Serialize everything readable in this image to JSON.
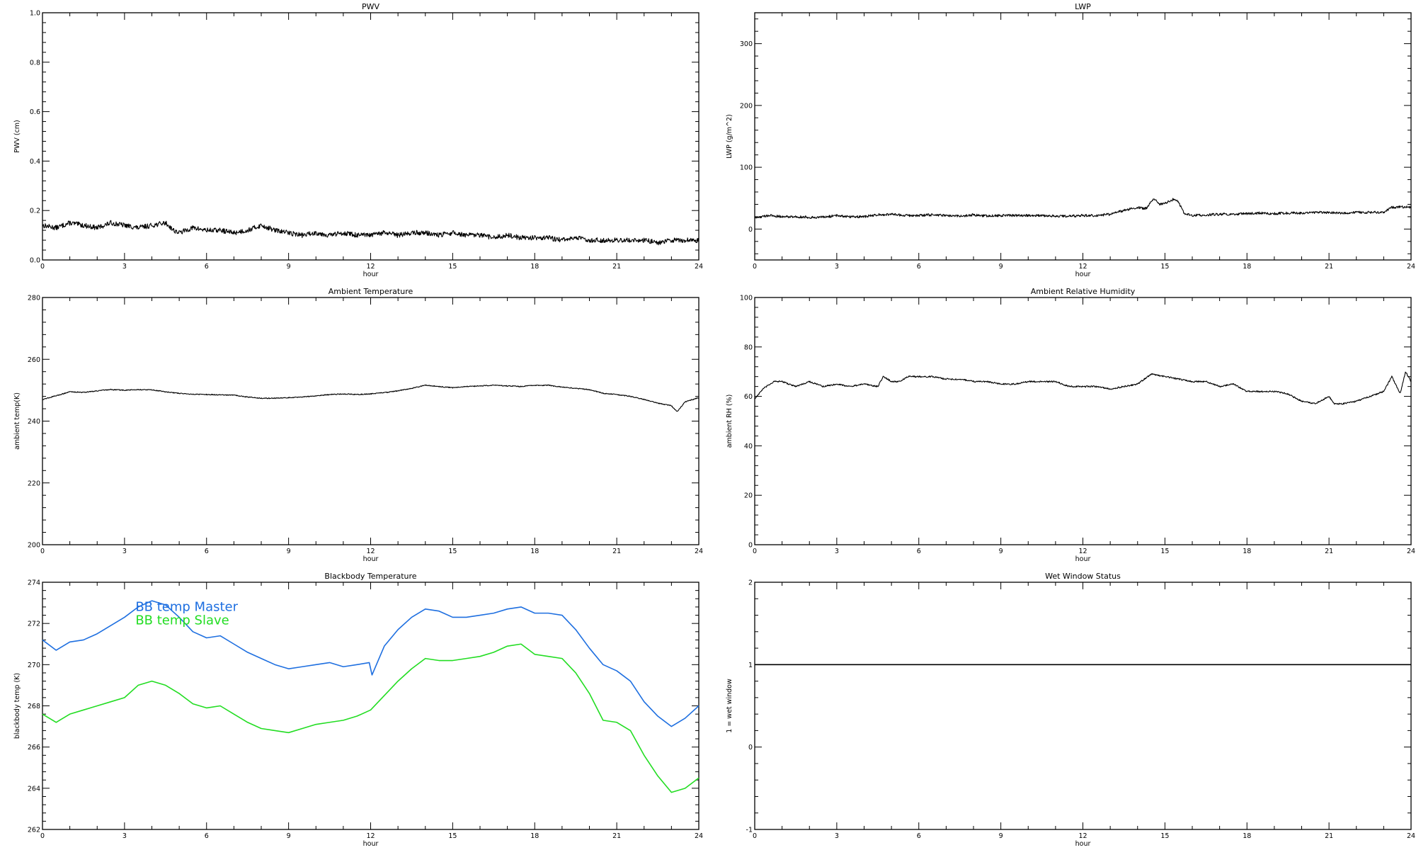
{
  "chart_data": [
    {
      "id": "pwv",
      "type": "line",
      "title": "PWV",
      "xlabel": "hour",
      "ylabel": "PWV (cm)",
      "xlim": [
        0,
        24
      ],
      "ylim": [
        0,
        1.0
      ],
      "xticks": [
        0,
        3,
        6,
        9,
        12,
        15,
        18,
        21,
        24
      ],
      "yticks": [
        0.0,
        0.2,
        0.4,
        0.6,
        0.8,
        1.0
      ],
      "yticklabels": [
        "0.0",
        "0.2",
        "0.4",
        "0.6",
        "0.8",
        "1.0"
      ],
      "noise": 0.01,
      "series": [
        {
          "color": "#000000",
          "x": [
            0,
            0.5,
            1,
            1.5,
            2,
            2.5,
            3,
            3.5,
            4,
            4.5,
            4.8,
            5,
            5.5,
            6,
            6.5,
            7,
            7.5,
            8,
            8.5,
            9,
            9.5,
            10,
            10.5,
            11,
            11.5,
            12,
            12.5,
            13,
            13.5,
            14,
            14.5,
            15,
            15.5,
            16,
            16.5,
            17,
            17.5,
            18,
            18.5,
            19,
            19.5,
            20,
            20.5,
            21,
            21.5,
            22,
            22.5,
            23,
            23.5,
            24
          ],
          "y": [
            0.14,
            0.13,
            0.15,
            0.14,
            0.13,
            0.15,
            0.14,
            0.13,
            0.14,
            0.15,
            0.12,
            0.11,
            0.13,
            0.12,
            0.12,
            0.11,
            0.12,
            0.14,
            0.12,
            0.11,
            0.1,
            0.11,
            0.1,
            0.11,
            0.1,
            0.1,
            0.11,
            0.1,
            0.11,
            0.11,
            0.1,
            0.11,
            0.1,
            0.1,
            0.09,
            0.1,
            0.09,
            0.09,
            0.09,
            0.08,
            0.09,
            0.08,
            0.08,
            0.08,
            0.08,
            0.08,
            0.07,
            0.08,
            0.08,
            0.08
          ]
        }
      ]
    },
    {
      "id": "lwp",
      "type": "line",
      "title": "LWP",
      "xlabel": "hour",
      "ylabel": "LWP (g/m^2)",
      "xlim": [
        0,
        24
      ],
      "ylim": [
        -50,
        350
      ],
      "xticks": [
        0,
        3,
        6,
        9,
        12,
        15,
        18,
        21,
        24
      ],
      "yticks": [
        0,
        100,
        200,
        300
      ],
      "yticklabels": [
        "0",
        "100",
        "200",
        "300"
      ],
      "noise": 2,
      "series": [
        {
          "color": "#000000",
          "x": [
            0,
            0.5,
            1,
            1.5,
            2,
            2.5,
            3,
            3.5,
            4,
            4.5,
            5,
            5.5,
            6,
            6.5,
            7,
            7.5,
            8,
            8.5,
            9,
            9.5,
            10,
            10.5,
            11,
            11.5,
            12,
            12.5,
            13,
            13.5,
            14,
            14.3,
            14.6,
            14.8,
            15,
            15.3,
            15.5,
            15.7,
            16,
            16.5,
            17,
            17.5,
            18,
            18.5,
            19,
            19.5,
            20,
            20.5,
            21,
            21.5,
            22,
            22.5,
            23,
            23.3,
            23.6,
            24
          ],
          "y": [
            18,
            22,
            20,
            20,
            19,
            19,
            22,
            20,
            20,
            23,
            24,
            22,
            22,
            23,
            22,
            21,
            23,
            21,
            22,
            22,
            22,
            22,
            21,
            21,
            22,
            22,
            24,
            30,
            35,
            33,
            50,
            40,
            42,
            48,
            44,
            25,
            22,
            23,
            24,
            24,
            25,
            26,
            25,
            26,
            26,
            27,
            27,
            26,
            27,
            27,
            27,
            35,
            36,
            35
          ]
        }
      ]
    },
    {
      "id": "ambient-temp",
      "type": "line",
      "title": "Ambient Temperature",
      "xlabel": "hour",
      "ylabel": "ambient temp(K)",
      "xlim": [
        0,
        24
      ],
      "ylim": [
        200,
        280
      ],
      "xticks": [
        0,
        3,
        6,
        9,
        12,
        15,
        18,
        21,
        24
      ],
      "yticks": [
        200,
        220,
        240,
        260,
        280
      ],
      "yticklabels": [
        "200",
        "220",
        "240",
        "260",
        "280"
      ],
      "noise": 0.15,
      "series": [
        {
          "color": "#000000",
          "x": [
            0,
            0.5,
            1,
            1.5,
            2,
            2.5,
            3,
            3.5,
            4,
            4.5,
            5,
            5.5,
            6,
            6.5,
            7,
            7.5,
            8,
            8.5,
            9,
            9.5,
            10,
            10.5,
            11,
            11.5,
            12,
            12.5,
            13,
            13.5,
            14,
            14.5,
            15,
            15.5,
            16,
            16.5,
            17,
            17.5,
            18,
            18.5,
            19,
            19.5,
            20,
            20.5,
            21,
            21.5,
            22,
            22.5,
            23,
            23.2,
            23.5,
            24
          ],
          "y": [
            247,
            248.2,
            249.5,
            249.3,
            249.8,
            250.2,
            250.0,
            250.2,
            250.1,
            249.5,
            249.0,
            248.7,
            248.6,
            248.5,
            248.4,
            247.8,
            247.4,
            247.4,
            247.6,
            247.8,
            248.2,
            248.6,
            248.8,
            248.6,
            248.8,
            249.2,
            249.8,
            250.6,
            251.6,
            251.2,
            250.8,
            251.2,
            251.4,
            251.6,
            251.4,
            251.2,
            251.6,
            251.6,
            251.0,
            250.6,
            250.2,
            249.0,
            248.6,
            248.0,
            247.0,
            245.8,
            245.0,
            243.0,
            246.2,
            247.6
          ]
        }
      ]
    },
    {
      "id": "ambient-rh",
      "type": "line",
      "title": "Ambient Relative Humidity",
      "xlabel": "hour",
      "ylabel": "ambient RH (%)",
      "xlim": [
        0,
        24
      ],
      "ylim": [
        0,
        100
      ],
      "xticks": [
        0,
        3,
        6,
        9,
        12,
        15,
        18,
        21,
        24
      ],
      "yticks": [
        0,
        20,
        40,
        60,
        80,
        100
      ],
      "yticklabels": [
        "0",
        "20",
        "40",
        "60",
        "80",
        "100"
      ],
      "noise": 0.3,
      "series": [
        {
          "color": "#000000",
          "x": [
            0,
            0.3,
            0.7,
            1,
            1.5,
            2,
            2.5,
            3,
            3.5,
            4,
            4.5,
            4.7,
            5,
            5.3,
            5.6,
            6,
            6.5,
            7,
            7.5,
            8,
            8.5,
            9,
            9.5,
            10,
            10.5,
            11,
            11.5,
            12,
            12.5,
            13,
            13.5,
            14,
            14.5,
            15,
            15.5,
            16,
            16.5,
            17,
            17.5,
            18,
            18.5,
            19,
            19.5,
            20,
            20.5,
            21,
            21.2,
            21.5,
            22,
            22.5,
            23,
            23.3,
            23.6,
            23.8,
            24
          ],
          "y": [
            59,
            63,
            66,
            66,
            64,
            66,
            64,
            65,
            64,
            65,
            64,
            68,
            66,
            66,
            68,
            68,
            68,
            67,
            67,
            66,
            66,
            65,
            65,
            66,
            66,
            66,
            64,
            64,
            64,
            63,
            64,
            65,
            69,
            68,
            67,
            66,
            66,
            64,
            65,
            62,
            62,
            62,
            61,
            58,
            57,
            60,
            57,
            57,
            58,
            60,
            62,
            68,
            61,
            70,
            66
          ]
        }
      ]
    },
    {
      "id": "blackbody-temp",
      "type": "line",
      "title": "Blackbody Temperature",
      "xlabel": "hour",
      "ylabel": "blackbody temp (K)",
      "xlim": [
        0,
        24
      ],
      "ylim": [
        262,
        274
      ],
      "xticks": [
        0,
        3,
        6,
        9,
        12,
        15,
        18,
        21,
        24
      ],
      "yticks": [
        262,
        264,
        266,
        268,
        270,
        272,
        274
      ],
      "yticklabels": [
        "262",
        "264",
        "266",
        "268",
        "270",
        "272",
        "274"
      ],
      "noise": 0,
      "legend_position": "top-left",
      "series": [
        {
          "name": "BB temp Master",
          "color": "#1e6fe0",
          "x": [
            0,
            0.5,
            1,
            1.5,
            2,
            2.5,
            3,
            3.5,
            4,
            4.5,
            5,
            5.5,
            6,
            6.5,
            7,
            7.5,
            8,
            8.5,
            9,
            9.5,
            10,
            10.5,
            11,
            11.5,
            11.95,
            12.05,
            12.5,
            13,
            13.5,
            14,
            14.5,
            15,
            15.5,
            16,
            16.5,
            17,
            17.5,
            18,
            18.5,
            19,
            19.5,
            20,
            20.5,
            21,
            21.5,
            22,
            22.5,
            23,
            23.5,
            24
          ],
          "y": [
            271.2,
            270.7,
            271.1,
            271.2,
            271.5,
            271.9,
            272.3,
            272.8,
            273.1,
            272.9,
            272.3,
            271.6,
            271.3,
            271.4,
            271.0,
            270.6,
            270.3,
            270.0,
            269.8,
            269.9,
            270.0,
            270.1,
            269.9,
            270.0,
            270.1,
            269.5,
            270.9,
            271.7,
            272.3,
            272.7,
            272.6,
            272.3,
            272.3,
            272.4,
            272.5,
            272.7,
            272.8,
            272.5,
            272.5,
            272.4,
            271.7,
            270.8,
            270.0,
            269.7,
            269.2,
            268.2,
            267.5,
            267.0,
            267.4,
            268.0
          ]
        },
        {
          "name": "BB temp Slave",
          "color": "#22dd22",
          "x": [
            0,
            0.5,
            1,
            1.5,
            2,
            2.5,
            3,
            3.5,
            4,
            4.5,
            5,
            5.5,
            6,
            6.5,
            7,
            7.5,
            8,
            8.5,
            9,
            9.5,
            10,
            10.5,
            11,
            11.5,
            12,
            12.5,
            13,
            13.5,
            14,
            14.5,
            15,
            15.5,
            16,
            16.5,
            17,
            17.5,
            18,
            18.5,
            19,
            19.5,
            20,
            20.5,
            21,
            21.5,
            22,
            22.5,
            23,
            23.5,
            24
          ],
          "y": [
            267.6,
            267.2,
            267.6,
            267.8,
            268.0,
            268.2,
            268.4,
            269.0,
            269.2,
            269.0,
            268.6,
            268.1,
            267.9,
            268.0,
            267.6,
            267.2,
            266.9,
            266.8,
            266.7,
            266.9,
            267.1,
            267.2,
            267.3,
            267.5,
            267.8,
            268.5,
            269.2,
            269.8,
            270.3,
            270.2,
            270.2,
            270.3,
            270.4,
            270.6,
            270.9,
            271.0,
            270.5,
            270.4,
            270.3,
            269.6,
            268.6,
            267.3,
            267.2,
            266.8,
            265.6,
            264.6,
            263.8,
            264.0,
            264.5
          ]
        }
      ]
    },
    {
      "id": "wet-window",
      "type": "line",
      "title": "Wet Window Status",
      "xlabel": "hour",
      "ylabel": "1 = wet window",
      "xlim": [
        0,
        24
      ],
      "ylim": [
        -1,
        2
      ],
      "xticks": [
        0,
        3,
        6,
        9,
        12,
        15,
        18,
        21,
        24
      ],
      "yticks": [
        -1,
        0,
        1,
        2
      ],
      "yticklabels": [
        "-1",
        "0",
        "1",
        "2"
      ],
      "noise": 0,
      "series": [
        {
          "color": "#000000",
          "x": [
            0,
            24
          ],
          "y": [
            1,
            1
          ]
        }
      ]
    }
  ]
}
